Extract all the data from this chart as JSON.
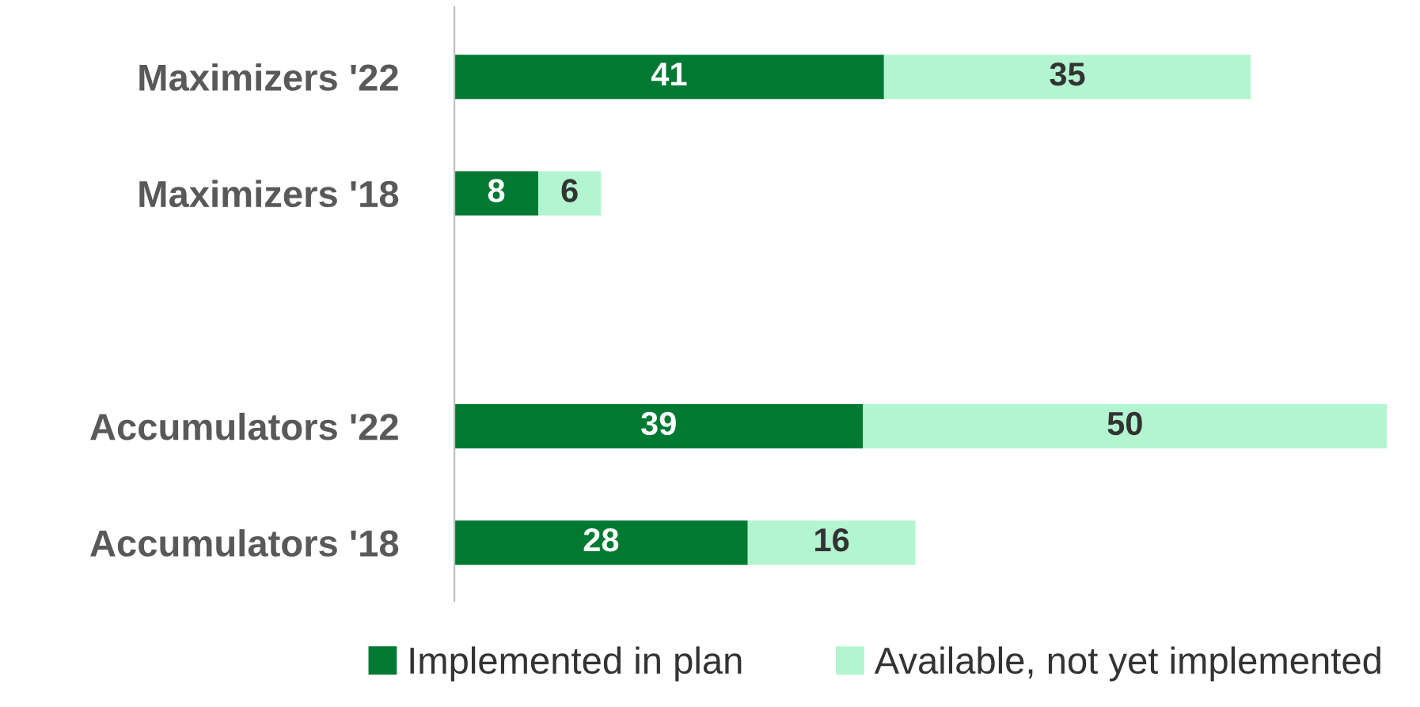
{
  "chart_data": {
    "type": "bar",
    "orientation": "horizontal",
    "stacked": true,
    "data_labels": true,
    "legend": "bottom",
    "grid": false,
    "categories": [
      "Maximizers '22",
      "Maximizers '18",
      null,
      "Accumulators '22",
      "Accumulators '18"
    ],
    "series": [
      {
        "name": "Implemented in plan",
        "color": "#007a33",
        "values": [
          41,
          8,
          null,
          39,
          28
        ]
      },
      {
        "name": "Available, not yet implemented",
        "color": "#b3f5d1",
        "values": [
          35,
          6,
          null,
          50,
          16
        ]
      }
    ]
  }
}
